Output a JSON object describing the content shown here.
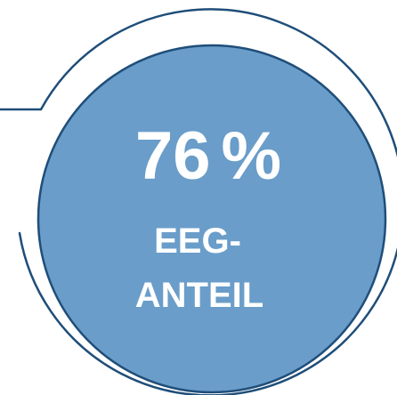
{
  "badge": {
    "value": "76",
    "unit": "%",
    "label_line1": "EEG-",
    "label_line2": "ANTEIL"
  },
  "colors": {
    "circle_fill": "#6a9dc9",
    "outline": "#1f4e79",
    "text": "#ffffff",
    "background": "#ffffff"
  }
}
